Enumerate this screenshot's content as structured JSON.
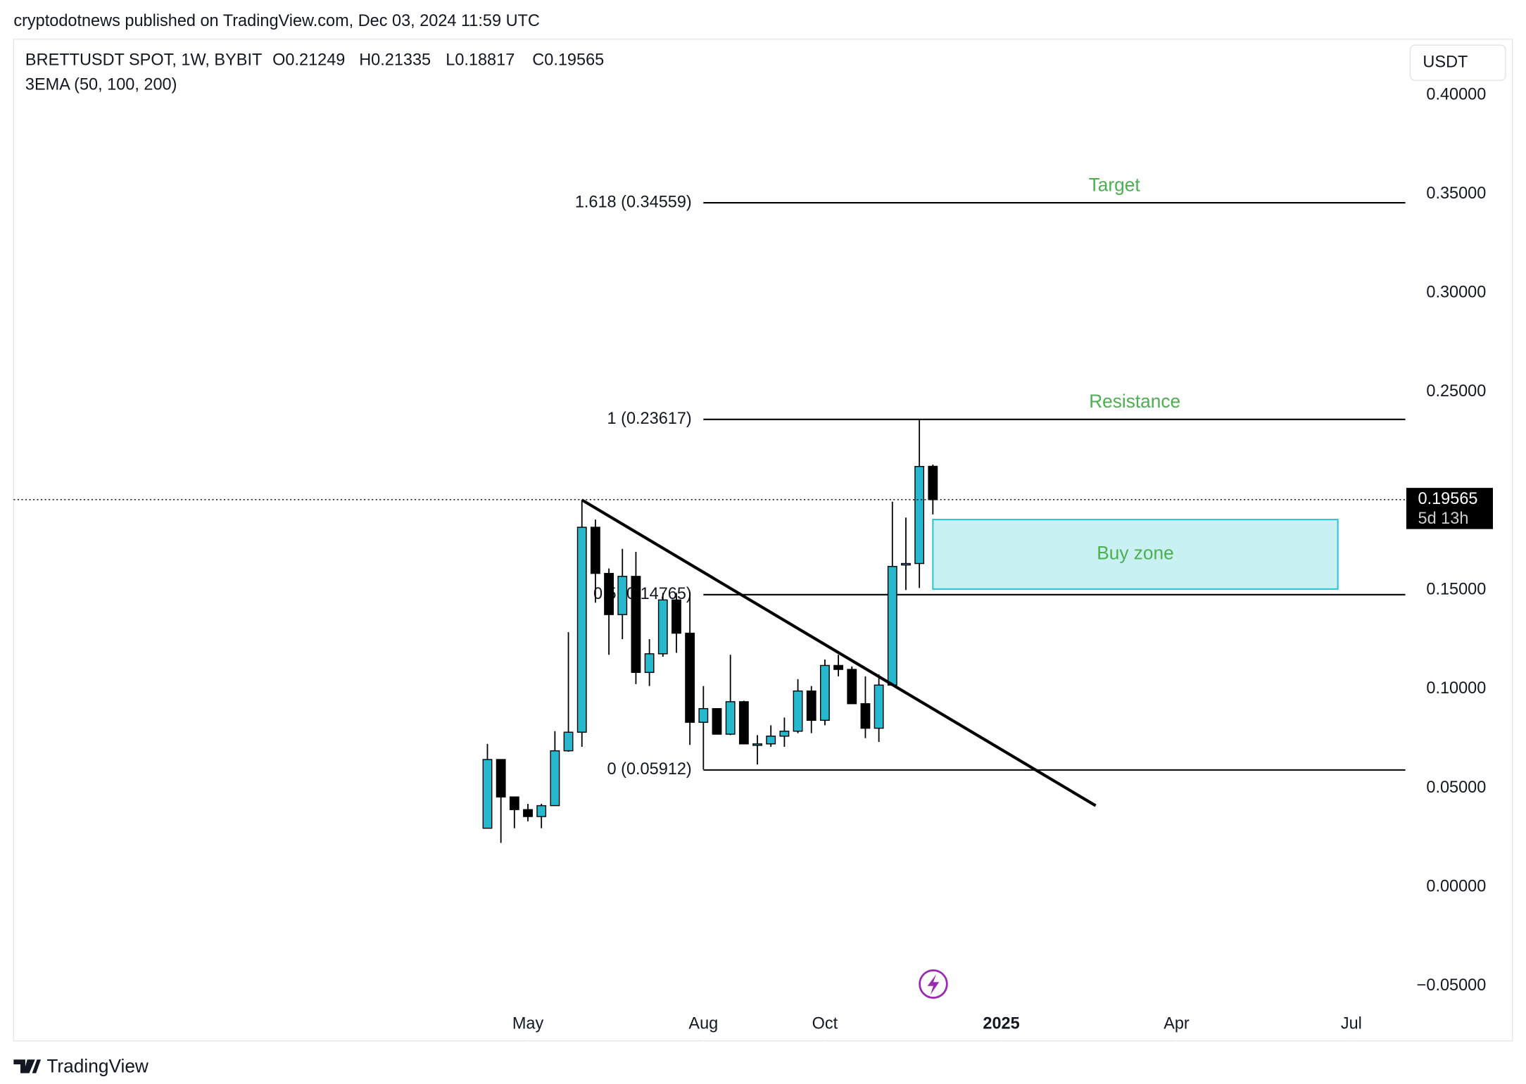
{
  "header": {
    "published": "cryptodotnews published on TradingView.com, Dec 03, 2024 11:59 UTC",
    "footer": "TradingView"
  },
  "chart_data": {
    "type": "candlestick",
    "symbol": "BRETTUSDT SPOT, 1W, BYBIT",
    "indicator": "3EMA (50, 100, 200)",
    "legend_labels": [
      "O",
      "H",
      "L",
      "C"
    ],
    "currency": "USDT",
    "countdown": "5d 13h",
    "up_color": "#26b8cc",
    "down_color": "#000000",
    "candles": [
      {
        "open": 0.0297,
        "high": 0.0723,
        "low": 0.0297,
        "close": 0.0644
      },
      {
        "open": 0.0644,
        "high": 0.0644,
        "low": 0.0223,
        "close": 0.0455
      },
      {
        "open": 0.0455,
        "high": 0.0455,
        "low": 0.0297,
        "close": 0.0391
      },
      {
        "open": 0.0391,
        "high": 0.042,
        "low": 0.0332,
        "close": 0.0356
      },
      {
        "open": 0.0356,
        "high": 0.042,
        "low": 0.0297,
        "close": 0.0411
      },
      {
        "open": 0.0411,
        "high": 0.0787,
        "low": 0.0411,
        "close": 0.0688
      },
      {
        "open": 0.0688,
        "high": 0.1287,
        "low": 0.0683,
        "close": 0.0782
      },
      {
        "open": 0.0782,
        "high": 0.1955,
        "low": 0.0708,
        "close": 0.1817
      },
      {
        "open": 0.1817,
        "high": 0.1856,
        "low": 0.1436,
        "close": 0.1584
      },
      {
        "open": 0.1584,
        "high": 0.1609,
        "low": 0.1173,
        "close": 0.1376
      },
      {
        "open": 0.1376,
        "high": 0.1708,
        "low": 0.1252,
        "close": 0.1569
      },
      {
        "open": 0.1569,
        "high": 0.1693,
        "low": 0.1025,
        "close": 0.1084
      },
      {
        "open": 0.1084,
        "high": 0.1252,
        "low": 0.1015,
        "close": 0.1178
      },
      {
        "open": 0.1178,
        "high": 0.1485,
        "low": 0.1163,
        "close": 0.145
      },
      {
        "open": 0.145,
        "high": 0.1485,
        "low": 0.1183,
        "close": 0.1282
      },
      {
        "open": 0.1282,
        "high": 0.149,
        "low": 0.0718,
        "close": 0.0832
      },
      {
        "open": 0.0832,
        "high": 0.1015,
        "low": 0.0594,
        "close": 0.0901
      },
      {
        "open": 0.0901,
        "high": 0.0901,
        "low": 0.0772,
        "close": 0.0772
      },
      {
        "open": 0.0772,
        "high": 0.1173,
        "low": 0.0767,
        "close": 0.0936
      },
      {
        "open": 0.0936,
        "high": 0.0941,
        "low": 0.0723,
        "close": 0.0723
      },
      {
        "open": 0.0718,
        "high": 0.0767,
        "low": 0.0619,
        "close": 0.0723
      },
      {
        "open": 0.0723,
        "high": 0.0817,
        "low": 0.0708,
        "close": 0.0762
      },
      {
        "open": 0.0762,
        "high": 0.0856,
        "low": 0.0708,
        "close": 0.0787
      },
      {
        "open": 0.0787,
        "high": 0.105,
        "low": 0.0777,
        "close": 0.099
      },
      {
        "open": 0.099,
        "high": 0.1015,
        "low": 0.0777,
        "close": 0.0842
      },
      {
        "open": 0.0842,
        "high": 0.1149,
        "low": 0.0817,
        "close": 0.1119
      },
      {
        "open": 0.1119,
        "high": 0.1173,
        "low": 0.1064,
        "close": 0.1099
      },
      {
        "open": 0.1099,
        "high": 0.1114,
        "low": 0.0926,
        "close": 0.0926
      },
      {
        "open": 0.0926,
        "high": 0.1064,
        "low": 0.0752,
        "close": 0.0802
      },
      {
        "open": 0.0802,
        "high": 0.1074,
        "low": 0.0733,
        "close": 0.102
      },
      {
        "open": 0.102,
        "high": 0.1946,
        "low": 0.102,
        "close": 0.1619
      },
      {
        "open": 0.1629,
        "high": 0.1866,
        "low": 0.15,
        "close": 0.1634
      },
      {
        "open": 0.1634,
        "high": 0.2362,
        "low": 0.151,
        "close": 0.2124
      },
      {
        "open": 0.21249,
        "high": 0.21335,
        "low": 0.18817,
        "close": 0.19565
      }
    ],
    "xlim": [
      -35.1,
      68.0
    ],
    "xticks": [
      {
        "value": 3,
        "label": "May"
      },
      {
        "value": 16,
        "label": "Aug"
      },
      {
        "value": 25,
        "label": "Oct"
      },
      {
        "value": 38.07,
        "label": "2025"
      },
      {
        "value": 51.05,
        "label": "Apr"
      },
      {
        "value": 64,
        "label": "Jul"
      }
    ],
    "ylim": [
      -0.0777,
      0.4282
    ],
    "yticks": [
      {
        "value": 0.4,
        "label": "0.40000"
      },
      {
        "value": 0.35,
        "label": "0.35000"
      },
      {
        "value": 0.3,
        "label": "0.30000"
      },
      {
        "value": 0.25,
        "label": "0.25000"
      },
      {
        "value": 0.15,
        "label": "0.15000"
      },
      {
        "value": 0.1,
        "label": "0.10000"
      },
      {
        "value": 0.05,
        "label": "0.05000"
      },
      {
        "value": 0,
        "label": "0.00000"
      },
      {
        "value": -0.05,
        "label": "−0.05000"
      }
    ],
    "fib_levels": [
      {
        "label": "1.618 (0.34559)",
        "value": 0.34559
      },
      {
        "label": "1 (0.23617)",
        "value": 0.23617
      },
      {
        "label": "0.5 (0.14765)",
        "value": 0.14765
      },
      {
        "label": "0 (0.05912)",
        "value": 0.05912
      }
    ],
    "trendline": {
      "x": [
        7,
        45.06
      ],
      "values": [
        0.1955,
        0.0411
      ]
    },
    "buy_zone": {
      "label": "Buy zone",
      "x": [
        33,
        63
      ],
      "values": [
        0.1856,
        0.1505
      ]
    },
    "annotations": [
      "Target",
      "Resistance"
    ]
  }
}
